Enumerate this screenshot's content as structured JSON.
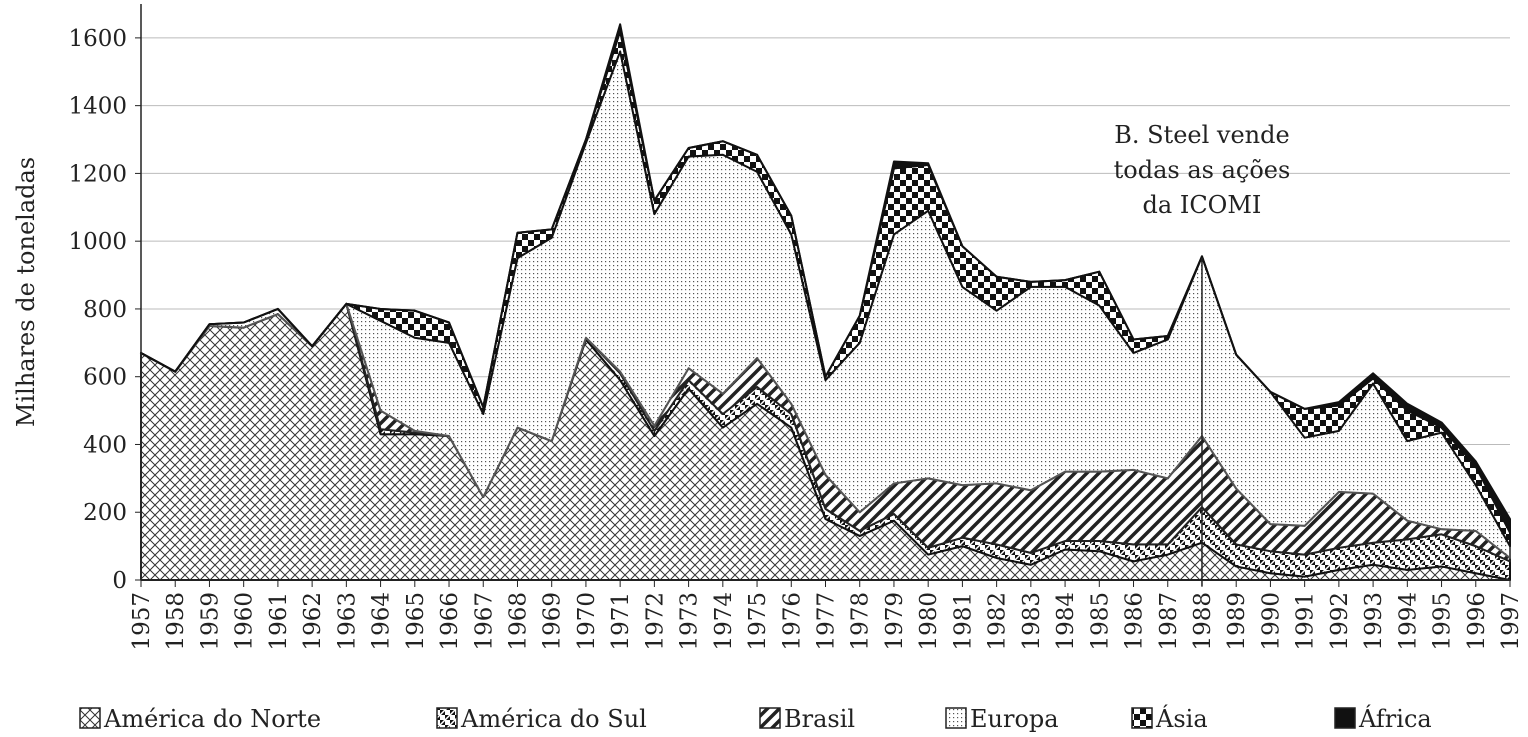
{
  "chart_data": {
    "type": "stacked-area",
    "y_label": "Milhares de toneladas",
    "categories": [
      "1957",
      "1958",
      "1959",
      "1960",
      "1961",
      "1962",
      "1963",
      "1964",
      "1965",
      "1966",
      "1967",
      "1968",
      "1969",
      "1970",
      "1971",
      "1972",
      "1973",
      "1974",
      "1975",
      "1976",
      "1977",
      "1978",
      "1979",
      "1980",
      "1981",
      "1982",
      "1983",
      "1984",
      "1985",
      "1986",
      "1987",
      "1988",
      "1989",
      "1990",
      "1991",
      "1992",
      "1993",
      "1994",
      "1995",
      "1996",
      "1997"
    ],
    "series": [
      {
        "name": "América do Norte",
        "color": "#333333",
        "values": [
          670,
          615,
          750,
          745,
          785,
          690,
          815,
          430,
          430,
          425,
          245,
          450,
          410,
          710,
          590,
          425,
          565,
          450,
          520,
          450,
          180,
          130,
          175,
          75,
          100,
          65,
          45,
          90,
          85,
          55,
          75,
          110,
          40,
          20,
          10,
          30,
          45,
          30,
          40,
          20,
          0
        ]
      },
      {
        "name": "América do Sul",
        "color": "#111111",
        "values": [
          0,
          0,
          0,
          0,
          0,
          0,
          0,
          15,
          5,
          0,
          0,
          0,
          0,
          5,
          20,
          15,
          25,
          40,
          50,
          40,
          30,
          15,
          20,
          20,
          25,
          40,
          35,
          25,
          30,
          50,
          30,
          105,
          65,
          65,
          65,
          65,
          65,
          90,
          95,
          80,
          55
        ]
      },
      {
        "name": "Brasil",
        "color": "#222222",
        "values": [
          0,
          0,
          0,
          0,
          0,
          0,
          0,
          55,
          5,
          0,
          0,
          0,
          0,
          0,
          5,
          15,
          35,
          60,
          85,
          30,
          100,
          55,
          90,
          205,
          155,
          180,
          185,
          205,
          205,
          220,
          195,
          210,
          165,
          80,
          85,
          165,
          145,
          55,
          15,
          45,
          10
        ]
      },
      {
        "name": "Europa",
        "color": "#555555",
        "values": [
          0,
          0,
          5,
          15,
          15,
          0,
          0,
          265,
          275,
          275,
          245,
          500,
          600,
          575,
          945,
          625,
          625,
          705,
          550,
          500,
          280,
          500,
          735,
          790,
          585,
          510,
          600,
          545,
          490,
          345,
          410,
          530,
          395,
          390,
          260,
          180,
          325,
          235,
          285,
          135,
          35
        ]
      },
      {
        "name": "Ásia",
        "color": "#111111",
        "values": [
          0,
          0,
          0,
          0,
          0,
          0,
          0,
          35,
          80,
          60,
          20,
          75,
          25,
          10,
          60,
          40,
          25,
          40,
          50,
          55,
          10,
          80,
          195,
          135,
          120,
          100,
          15,
          20,
          100,
          40,
          10,
          0,
          0,
          0,
          85,
          75,
          15,
          90,
          15,
          55,
          40
        ]
      },
      {
        "name": "África",
        "color": "#111111",
        "values": [
          0,
          0,
          0,
          0,
          0,
          0,
          0,
          0,
          0,
          0,
          0,
          0,
          0,
          0,
          20,
          0,
          0,
          0,
          0,
          0,
          0,
          0,
          20,
          5,
          0,
          0,
          0,
          0,
          0,
          0,
          0,
          0,
          0,
          0,
          0,
          10,
          15,
          20,
          15,
          15,
          40
        ]
      }
    ],
    "ylim": [
      0,
      1700
    ],
    "yticks": [
      0,
      200,
      400,
      600,
      800,
      1000,
      1200,
      1400,
      1600
    ],
    "grid": true,
    "legend": "bottom",
    "annotation": {
      "x": "1988",
      "lines": [
        "B. Steel vende",
        "todas as ações",
        "da ICOMI"
      ]
    }
  }
}
